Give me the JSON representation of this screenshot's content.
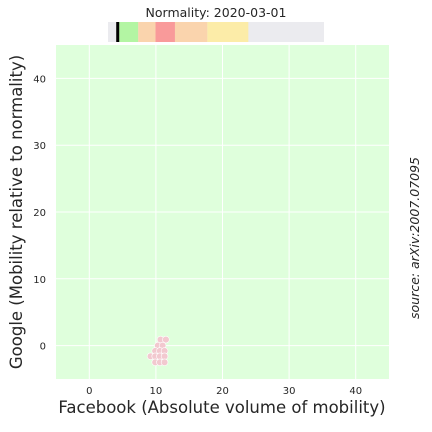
{
  "chart_data": {
    "type": "scatter",
    "title": "Normality: 2020-03-01",
    "xlabel": "Facebook (Absolute volume of mobility)",
    "ylabel": "Google (Mobility relative to normality)",
    "source": "source: arXiv:2007.07095",
    "xlim": [
      -5,
      45
    ],
    "ylim": [
      -5,
      45
    ],
    "xticks": [
      0,
      10,
      20,
      30,
      40
    ],
    "yticks": [
      0,
      10,
      20,
      30,
      40
    ],
    "grid": true,
    "colors": {
      "plot_bg": "#dfffdc",
      "grid": "#ffffff",
      "points": "#f2c9cf",
      "point_edge": "#ffffff"
    },
    "points": [
      {
        "x": 10.7,
        "y": 0.9
      },
      {
        "x": 11.5,
        "y": 0.9
      },
      {
        "x": 10.3,
        "y": 0.0
      },
      {
        "x": 11.0,
        "y": 0.0
      },
      {
        "x": 9.9,
        "y": -0.8
      },
      {
        "x": 10.6,
        "y": -0.8
      },
      {
        "x": 11.3,
        "y": -0.8
      },
      {
        "x": 9.2,
        "y": -1.6
      },
      {
        "x": 9.9,
        "y": -1.6
      },
      {
        "x": 10.6,
        "y": -1.6
      },
      {
        "x": 11.3,
        "y": -1.6
      },
      {
        "x": 9.9,
        "y": -2.5
      },
      {
        "x": 10.6,
        "y": -2.5
      },
      {
        "x": 11.3,
        "y": -2.5
      }
    ],
    "colorbar": {
      "segments": [
        {
          "color": "#ebebef"
        },
        {
          "color": "#b3f5a3"
        },
        {
          "color": "#fad4ad"
        },
        {
          "color": "#f99a9a"
        },
        {
          "color": "#fad4ad"
        },
        {
          "color": "#fceca8"
        },
        {
          "color": "#ebebef"
        }
      ],
      "segment_fractions": [
        0.04,
        0.14,
        0.22,
        0.31,
        0.46,
        0.65,
        0.96,
        1.0
      ],
      "marker": 0.045,
      "marker_color": "#000000"
    }
  }
}
